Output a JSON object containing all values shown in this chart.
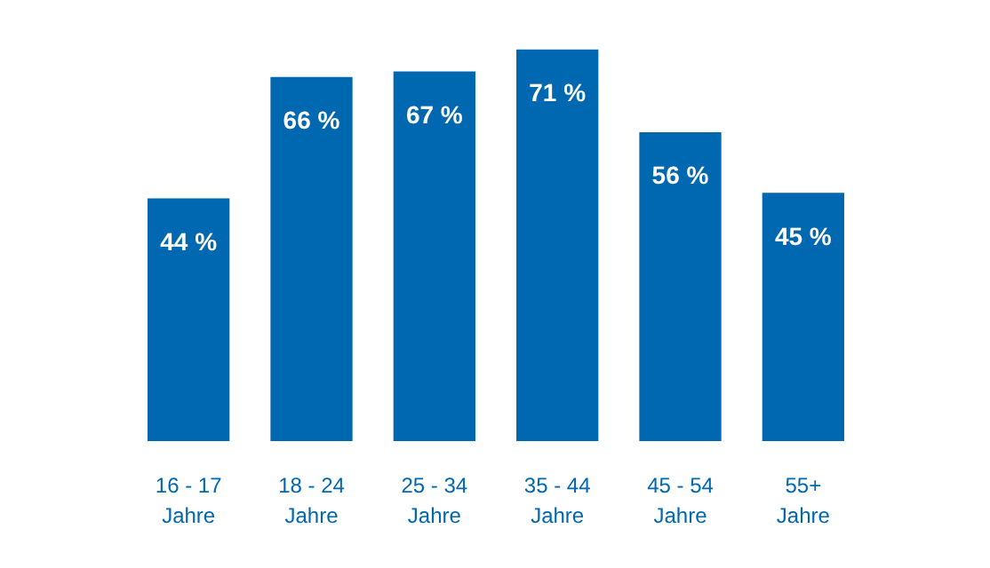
{
  "chart_data": {
    "type": "bar",
    "categories": [
      "16 - 17\nJahre",
      "18 - 24\nJahre",
      "25 - 34\nJahre",
      "35 - 44\nJahre",
      "45 - 54\nJahre",
      "55+\nJahre"
    ],
    "values": [
      44,
      66,
      67,
      71,
      56,
      45
    ],
    "value_labels": [
      "44 %",
      "66 %",
      "67 %",
      "71 %",
      "56 %",
      "45 %"
    ],
    "color": "#0067b1"
  }
}
